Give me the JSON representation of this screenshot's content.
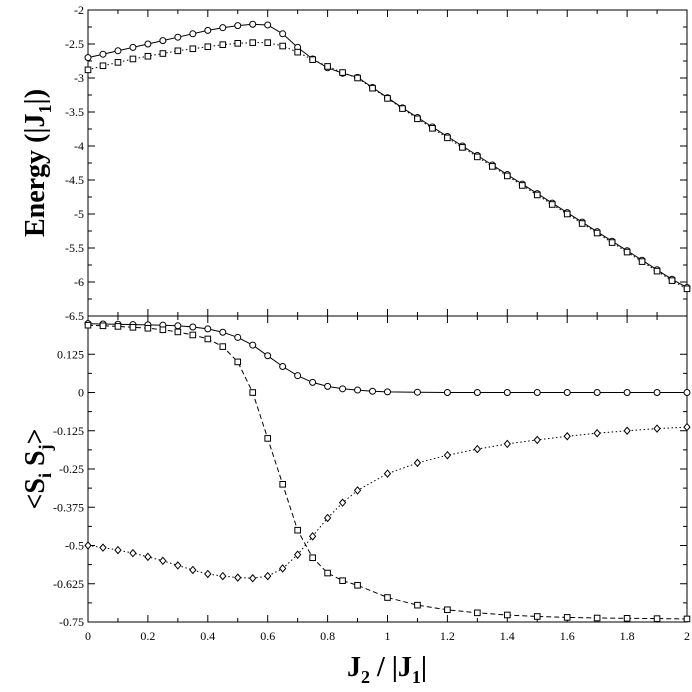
{
  "chart_data": [
    {
      "type": "line",
      "panel": "top",
      "ylabel": "Energy (|J1|)",
      "ylabel_parts": {
        "main": "Energy (|J",
        "sub": "1",
        "end": "|)"
      },
      "ylim": [
        -6.5,
        -2
      ],
      "xlim": [
        0,
        2
      ],
      "yticks": [
        -2,
        -2.5,
        -3,
        -3.5,
        -4,
        -4.5,
        -5,
        -5.5,
        -6,
        -6.5
      ],
      "ytick_labels": [
        "-2",
        "-2.5",
        "-3",
        "-3.5",
        "-4",
        "-4.5",
        "-5",
        "-5.5",
        "-6",
        "-6.5"
      ],
      "grid": false,
      "series": [
        {
          "marker": "circle",
          "line": "solid",
          "x": [
            0,
            0.05,
            0.1,
            0.15,
            0.2,
            0.25,
            0.3,
            0.35,
            0.4,
            0.45,
            0.5,
            0.55,
            0.6,
            0.65,
            0.7,
            0.75,
            0.8,
            0.85,
            0.9,
            0.95,
            1.0,
            1.05,
            1.1,
            1.15,
            1.2,
            1.25,
            1.3,
            1.35,
            1.4,
            1.45,
            1.5,
            1.55,
            1.6,
            1.65,
            1.7,
            1.75,
            1.8,
            1.85,
            1.9,
            1.95,
            2.0
          ],
          "y": [
            -2.7,
            -2.65,
            -2.6,
            -2.55,
            -2.5,
            -2.45,
            -2.4,
            -2.35,
            -2.3,
            -2.26,
            -2.23,
            -2.21,
            -2.22,
            -2.35,
            -2.55,
            -2.72,
            -2.85,
            -2.93,
            -2.99,
            -3.14,
            -3.29,
            -3.44,
            -3.58,
            -3.72,
            -3.86,
            -4.0,
            -4.14,
            -4.28,
            -4.42,
            -4.56,
            -4.7,
            -4.84,
            -4.98,
            -5.12,
            -5.26,
            -5.4,
            -5.54,
            -5.68,
            -5.82,
            -5.96,
            -6.08
          ]
        },
        {
          "marker": "square",
          "line": "dotted",
          "x": [
            0,
            0.05,
            0.1,
            0.15,
            0.2,
            0.25,
            0.3,
            0.35,
            0.4,
            0.45,
            0.5,
            0.55,
            0.6,
            0.65,
            0.7,
            0.75,
            0.8,
            0.85,
            0.9,
            0.95,
            1.0,
            1.05,
            1.1,
            1.15,
            1.2,
            1.25,
            1.3,
            1.35,
            1.4,
            1.45,
            1.5,
            1.55,
            1.6,
            1.65,
            1.7,
            1.75,
            1.8,
            1.85,
            1.9,
            1.95,
            2.0
          ],
          "y": [
            -2.88,
            -2.82,
            -2.77,
            -2.72,
            -2.68,
            -2.64,
            -2.6,
            -2.57,
            -2.54,
            -2.51,
            -2.49,
            -2.48,
            -2.48,
            -2.53,
            -2.62,
            -2.73,
            -2.83,
            -2.92,
            -3.0,
            -3.15,
            -3.3,
            -3.45,
            -3.6,
            -3.74,
            -3.88,
            -4.02,
            -4.16,
            -4.3,
            -4.44,
            -4.58,
            -4.72,
            -4.86,
            -5.0,
            -5.14,
            -5.28,
            -5.42,
            -5.56,
            -5.7,
            -5.84,
            -5.98,
            -6.1
          ]
        }
      ]
    },
    {
      "type": "line",
      "panel": "bottom",
      "xlabel": "J2 / |J1|",
      "xlabel_parts": {
        "a": "J",
        "a_sub": "2",
        "mid": " / |J",
        "b_sub": "1",
        "end": "|"
      },
      "ylabel": "<Si Sj>",
      "ylabel_parts": {
        "open": "<S",
        "sub1": "i",
        "mid": " S",
        "sub2": "j",
        "close": ">"
      },
      "ylim": [
        -0.75,
        0.25
      ],
      "xlim": [
        0,
        2
      ],
      "yticks": [
        0.125,
        0,
        -0.125,
        -0.25,
        -0.375,
        -0.5,
        -0.625,
        -0.75
      ],
      "ytick_labels": [
        "0.125",
        "0",
        "-0.125",
        "-0.25",
        "-0.375",
        "-0.5",
        "-0.625",
        "-0.75"
      ],
      "xticks": [
        0,
        0.2,
        0.4,
        0.6,
        0.8,
        1,
        1.2,
        1.4,
        1.6,
        1.8,
        2
      ],
      "xtick_labels": [
        "0",
        "0.2",
        "0.4",
        "0.6",
        "0.8",
        "1",
        "1.2",
        "1.4",
        "1.6",
        "1.8",
        "2"
      ],
      "grid": false,
      "series": [
        {
          "marker": "circle",
          "line": "solid",
          "x": [
            0,
            0.05,
            0.1,
            0.15,
            0.2,
            0.25,
            0.3,
            0.35,
            0.4,
            0.45,
            0.5,
            0.55,
            0.6,
            0.65,
            0.7,
            0.75,
            0.8,
            0.85,
            0.9,
            0.95,
            1.0,
            1.1,
            1.2,
            1.3,
            1.4,
            1.5,
            1.6,
            1.7,
            1.8,
            1.9,
            2.0
          ],
          "y": [
            0.225,
            0.224,
            0.223,
            0.222,
            0.221,
            0.22,
            0.218,
            0.214,
            0.208,
            0.197,
            0.18,
            0.155,
            0.12,
            0.085,
            0.055,
            0.033,
            0.02,
            0.012,
            0.008,
            0.004,
            0.002,
            0.001,
            0.0,
            0.0,
            0.0,
            0.0,
            0.0,
            0.0,
            0.0,
            0.0,
            0.0
          ]
        },
        {
          "marker": "square",
          "line": "dashed",
          "x": [
            0,
            0.05,
            0.1,
            0.15,
            0.2,
            0.25,
            0.3,
            0.35,
            0.4,
            0.45,
            0.5,
            0.55,
            0.6,
            0.65,
            0.7,
            0.75,
            0.8,
            0.85,
            0.9,
            1.0,
            1.1,
            1.2,
            1.3,
            1.4,
            1.5,
            1.6,
            1.7,
            1.8,
            1.9,
            2.0
          ],
          "y": [
            0.22,
            0.218,
            0.216,
            0.213,
            0.21,
            0.205,
            0.198,
            0.188,
            0.175,
            0.15,
            0.1,
            0.0,
            -0.15,
            -0.3,
            -0.45,
            -0.54,
            -0.59,
            -0.615,
            -0.63,
            -0.67,
            -0.695,
            -0.71,
            -0.72,
            -0.727,
            -0.732,
            -0.735,
            -0.737,
            -0.738,
            -0.739,
            -0.74
          ]
        },
        {
          "marker": "diamond",
          "line": "dotted",
          "x": [
            0,
            0.05,
            0.1,
            0.15,
            0.2,
            0.25,
            0.3,
            0.35,
            0.4,
            0.45,
            0.5,
            0.55,
            0.6,
            0.65,
            0.7,
            0.75,
            0.8,
            0.85,
            0.9,
            1.0,
            1.1,
            1.2,
            1.3,
            1.4,
            1.5,
            1.6,
            1.7,
            1.8,
            1.9,
            2.0
          ],
          "y": [
            -0.5,
            -0.507,
            -0.515,
            -0.525,
            -0.537,
            -0.55,
            -0.565,
            -0.58,
            -0.593,
            -0.6,
            -0.605,
            -0.607,
            -0.6,
            -0.575,
            -0.53,
            -0.47,
            -0.41,
            -0.36,
            -0.32,
            -0.265,
            -0.23,
            -0.205,
            -0.185,
            -0.168,
            -0.155,
            -0.143,
            -0.133,
            -0.125,
            -0.118,
            -0.113
          ]
        }
      ]
    }
  ]
}
